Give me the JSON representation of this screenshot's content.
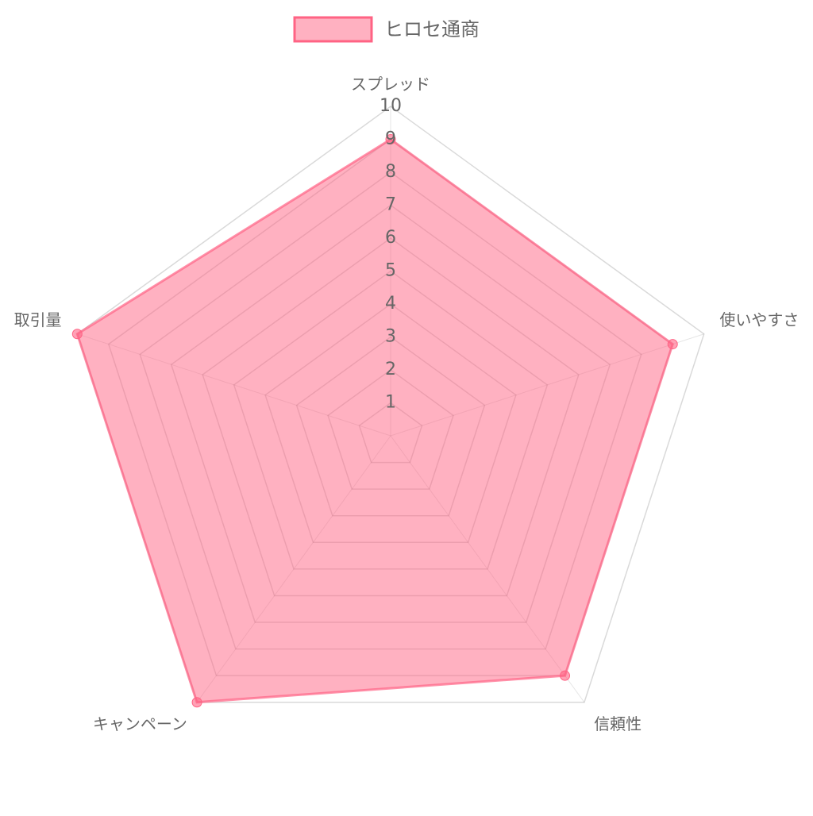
{
  "chart_data": {
    "type": "radar",
    "categories": [
      "スプレッド",
      "使いやすさ",
      "信頼性",
      "キャンペーン",
      "取引量"
    ],
    "series": [
      {
        "name": "ヒロセ通商",
        "color": "#ff6384",
        "values": [
          9,
          9,
          9,
          10,
          10
        ]
      }
    ],
    "ylim": [
      0,
      10
    ],
    "yticks": [
      1,
      2,
      3,
      4,
      5,
      6,
      7,
      8,
      9,
      10
    ],
    "grid": true,
    "legend": "top"
  }
}
